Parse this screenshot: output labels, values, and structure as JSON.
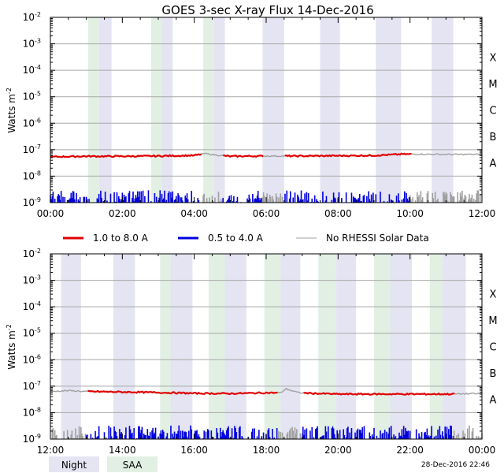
{
  "title": "GOES 3-sec X-ray Flux   14-Dec-2016",
  "ylabel": "Watts m",
  "ylabel_sup": "-2",
  "ylim_exponents": [
    -9,
    -2
  ],
  "y_ticks": [
    {
      "base": "10",
      "exp": "-2"
    },
    {
      "base": "10",
      "exp": "-3"
    },
    {
      "base": "10",
      "exp": "-4"
    },
    {
      "base": "10",
      "exp": "-5"
    },
    {
      "base": "10",
      "exp": "-6"
    },
    {
      "base": "10",
      "exp": "-7"
    },
    {
      "base": "10",
      "exp": "-8"
    },
    {
      "base": "10",
      "exp": "-9"
    }
  ],
  "flare_classes": [
    {
      "label": "X",
      "exp": -3.5
    },
    {
      "label": "M",
      "exp": -4.5
    },
    {
      "label": "C",
      "exp": -5.5
    },
    {
      "label": "B",
      "exp": -6.5
    },
    {
      "label": "A",
      "exp": -7.5
    }
  ],
  "legend": [
    {
      "label": "1.0 to 8.0 A",
      "color": "#e00000"
    },
    {
      "label": "0.5 to 4.0 A",
      "color": "#0000e0"
    },
    {
      "label": "No RHESSI Solar Data",
      "color": "#a0a0a0"
    }
  ],
  "shading_legend": [
    {
      "label": "Night",
      "color": "#e4e4f2"
    },
    {
      "label": "SAA",
      "color": "#e2f0e4"
    }
  ],
  "timestamp": "28-Dec-2016 22:46",
  "colors": {
    "night": "#e4e4f2",
    "saa": "#e2f0e4",
    "long": "#e00000",
    "short": "#0000e0",
    "no_data": "#a0a0a0",
    "grid": "#a8a8a8"
  },
  "chart_data": [
    {
      "type": "line",
      "panel": "top",
      "x_unit": "hours UT",
      "xlim": [
        0,
        12
      ],
      "xticks": [
        "00:00",
        "02:00",
        "04:00",
        "06:00",
        "08:00",
        "10:00",
        "12:00"
      ],
      "night_intervals": [
        [
          1.35,
          1.7
        ],
        [
          3.1,
          3.4
        ],
        [
          4.55,
          4.85
        ],
        [
          5.9,
          6.5
        ],
        [
          7.5,
          8.05
        ],
        [
          9.05,
          9.75
        ],
        [
          10.6,
          11.2
        ]
      ],
      "saa_intervals": [
        [
          1.05,
          1.35
        ],
        [
          2.8,
          3.1
        ],
        [
          4.25,
          4.55
        ]
      ],
      "no_rhessi_intervals": [
        [
          4.2,
          4.8
        ],
        [
          5.9,
          6.5
        ],
        [
          10.0,
          12.0
        ]
      ],
      "series": [
        {
          "name": "1.0 to 8.0 A",
          "x": [
            0,
            1,
            2,
            3,
            4,
            4.3,
            4.6,
            5,
            6,
            7,
            8,
            9,
            9.8,
            10.2,
            11,
            12
          ],
          "exponent": [
            -7.27,
            -7.25,
            -7.25,
            -7.24,
            -7.22,
            -7.15,
            -7.2,
            -7.25,
            -7.24,
            -7.24,
            -7.23,
            -7.22,
            -7.17,
            -7.17,
            -7.18,
            -7.18
          ]
        },
        {
          "name": "0.5 to 4.0 A",
          "baseline_exponent": -9.0,
          "peak_exponent": -8.55
        }
      ]
    },
    {
      "type": "line",
      "panel": "bottom",
      "x_unit": "hours UT",
      "xlim": [
        12,
        24
      ],
      "xticks": [
        "12:00",
        "14:00",
        "16:00",
        "18:00",
        "20:00",
        "22:00",
        "00:00"
      ],
      "night_intervals": [
        [
          12.3,
          12.85
        ],
        [
          13.75,
          14.35
        ],
        [
          15.35,
          15.95
        ],
        [
          16.85,
          17.45
        ],
        [
          18.4,
          18.95
        ],
        [
          19.95,
          20.5
        ],
        [
          21.45,
          22.05
        ],
        [
          22.9,
          23.55
        ]
      ],
      "saa_intervals": [
        [
          16.4,
          16.85
        ],
        [
          17.95,
          18.4
        ],
        [
          19.45,
          19.95
        ],
        [
          21.0,
          21.45
        ],
        [
          22.55,
          22.9
        ],
        [
          15.05,
          15.35
        ]
      ],
      "no_rhessi_intervals": [
        [
          12.0,
          13.0
        ],
        [
          18.3,
          19.0
        ],
        [
          23.2,
          24.0
        ]
      ],
      "series": [
        {
          "name": "1.0 to 8.0 A",
          "x": [
            12,
            12.5,
            13,
            14,
            15,
            16,
            17,
            18,
            18.4,
            18.55,
            18.9,
            19.5,
            20,
            21,
            22,
            23,
            24
          ],
          "exponent": [
            -7.2,
            -7.17,
            -7.2,
            -7.22,
            -7.24,
            -7.27,
            -7.28,
            -7.25,
            -7.25,
            -7.1,
            -7.25,
            -7.28,
            -7.3,
            -7.3,
            -7.3,
            -7.3,
            -7.28
          ]
        },
        {
          "name": "0.5 to 4.0 A",
          "baseline_exponent": -9.0,
          "peak_exponent": -8.5
        }
      ]
    }
  ]
}
